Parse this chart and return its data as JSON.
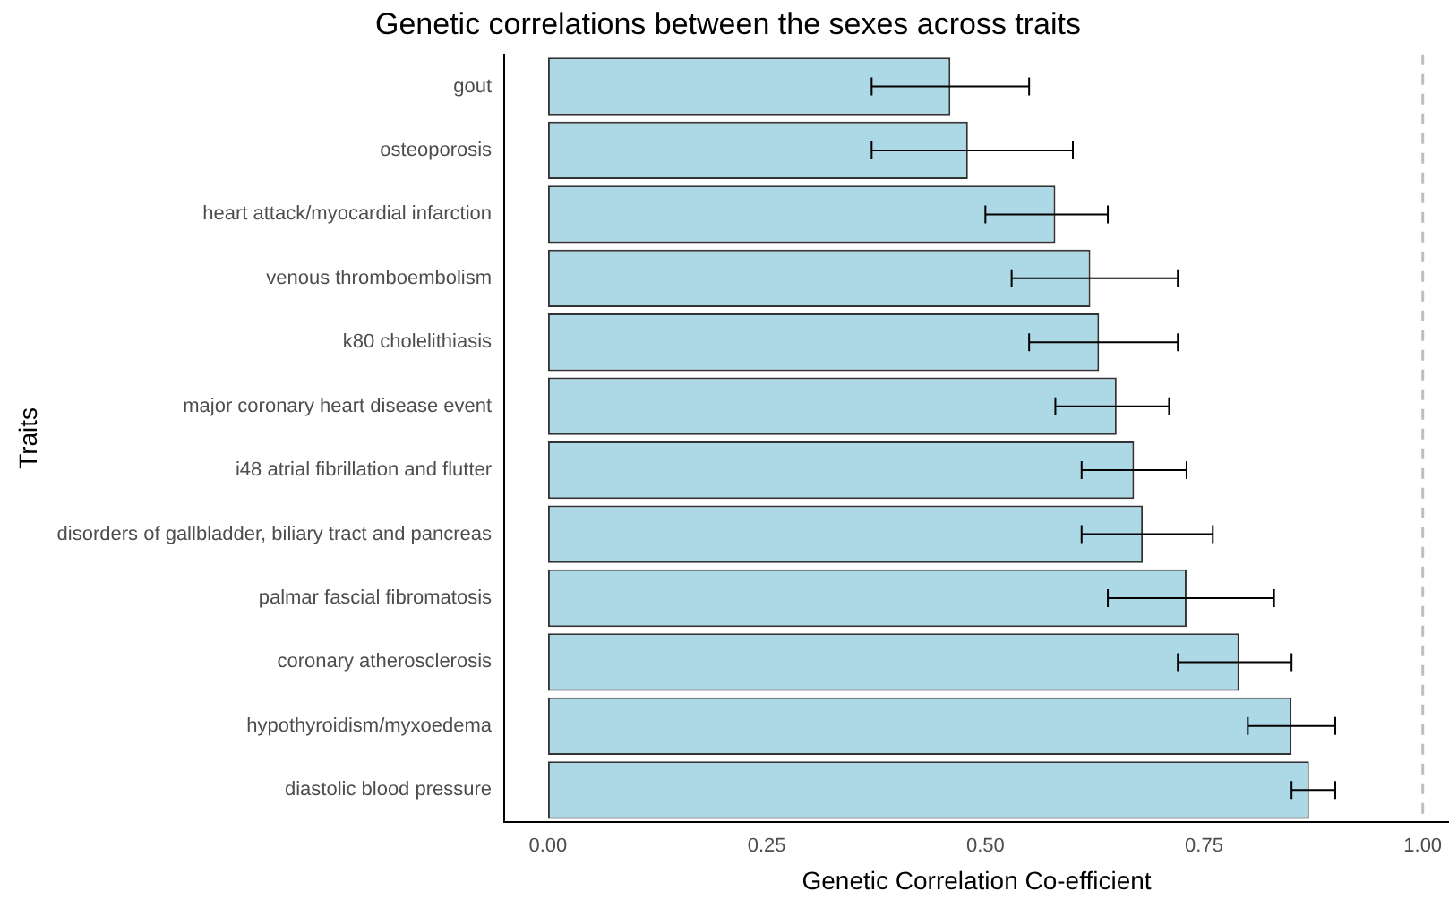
{
  "chart_data": {
    "type": "bar",
    "orientation": "horizontal",
    "title": "Genetic correlations between the sexes across traits",
    "xlabel": "Genetic Correlation Co-efficient",
    "ylabel": "Traits",
    "categories": [
      "gout",
      "osteoporosis",
      "heart attack/myocardial infarction",
      "venous thromboembolism",
      "k80 cholelithiasis",
      "major coronary heart disease event",
      "i48 atrial fibrillation and flutter",
      "disorders of gallbladder, biliary tract and pancreas",
      "palmar fascial fibromatosis",
      "coronary atherosclerosis",
      "hypothyroidism/myxoedema",
      "diastolic blood pressure"
    ],
    "values": [
      0.46,
      0.48,
      0.58,
      0.62,
      0.63,
      0.65,
      0.67,
      0.68,
      0.73,
      0.79,
      0.85,
      0.87
    ],
    "errors": [
      [
        0.37,
        0.55
      ],
      [
        0.37,
        0.6
      ],
      [
        0.5,
        0.64
      ],
      [
        0.53,
        0.72
      ],
      [
        0.55,
        0.72
      ],
      [
        0.58,
        0.71
      ],
      [
        0.61,
        0.73
      ],
      [
        0.61,
        0.76
      ],
      [
        0.64,
        0.83
      ],
      [
        0.72,
        0.85
      ],
      [
        0.8,
        0.9
      ],
      [
        0.85,
        0.9
      ]
    ],
    "color": "#add8e6",
    "xlim": [
      -0.05,
      1.03
    ],
    "xticks": [
      {
        "value": 0,
        "label": "0.00"
      },
      {
        "value": 0.25,
        "label": "0.25"
      },
      {
        "value": 0.5,
        "label": "0.50"
      },
      {
        "value": 0.75,
        "label": "0.75"
      },
      {
        "value": 1,
        "label": "1.00"
      }
    ],
    "ref_lines": [
      {
        "axis": "x",
        "value": 1,
        "color": "#bebebe",
        "line_style": "dashed"
      }
    ],
    "grid": false,
    "legend": false
  }
}
